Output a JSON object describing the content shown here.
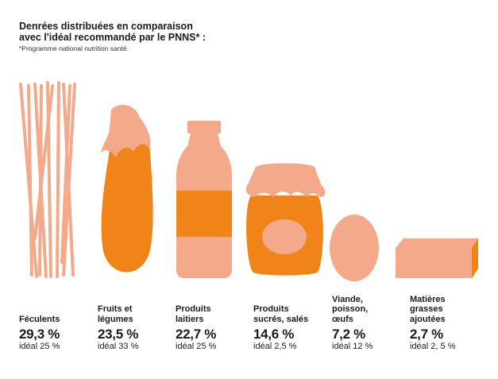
{
  "header": {
    "title_line1": "Denrées distribuées en comparaison",
    "title_line2": "avec l'idéal recommandé par le PNNS* :",
    "footnote": "*Programme national nutrition santé."
  },
  "colors": {
    "light": "#f4a98a",
    "orange": "#f08418",
    "text": "#1a1a1a"
  },
  "categories": [
    {
      "name": "Féculents",
      "percent": "29,3 %",
      "ideal": "idéal 25 %",
      "icon": "pasta-icon",
      "value": 29.3,
      "ideal_value": 25
    },
    {
      "name": "Fruits et\nlégumes",
      "percent": "23,5 %",
      "ideal": "idéal 33 %",
      "icon": "eggplant-icon",
      "value": 23.5,
      "ideal_value": 33
    },
    {
      "name": "Produits\nlaitiers",
      "percent": "22,7 %",
      "ideal": "idéal 25 %",
      "icon": "milk-bottle-icon",
      "value": 22.7,
      "ideal_value": 25
    },
    {
      "name": "Produits\nsucrés, salés",
      "percent": "14,6 %",
      "ideal": "idéal 2,5 %",
      "icon": "jam-jar-icon",
      "value": 14.6,
      "ideal_value": 2.5
    },
    {
      "name": "Viande,\npoisson,\nœufs",
      "percent": "7,2 %",
      "ideal": "idéal 12 %",
      "icon": "egg-icon",
      "value": 7.2,
      "ideal_value": 12
    },
    {
      "name": "Matières\ngrasses\najoutées",
      "percent": "2,7 %",
      "ideal": "idéal 2, 5 %",
      "icon": "butter-icon",
      "value": 2.7,
      "ideal_value": 2.5
    }
  ]
}
